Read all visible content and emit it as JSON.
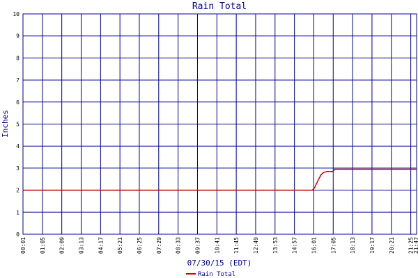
{
  "chart_data": {
    "type": "line",
    "title": "Rain Total",
    "ylabel": "Inches",
    "xlabel": "07/30/15 (EDT)",
    "ylim": [
      0,
      10
    ],
    "y_ticks": [
      0,
      1,
      2,
      3,
      4,
      5,
      6,
      7,
      8,
      9,
      10
    ],
    "x_ticks": [
      "00:01",
      "01:05",
      "02:09",
      "03:13",
      "04:17",
      "05:21",
      "06:25",
      "07:29",
      "08:33",
      "09:37",
      "10:41",
      "11:45",
      "12:49",
      "13:53",
      "14:57",
      "16:01",
      "17:05",
      "18:13",
      "19:17",
      "20:21",
      "21:25",
      "21:47"
    ],
    "grid": true,
    "legend_position": "bottom-left",
    "series": [
      {
        "name": "Rain Total",
        "color": "#cc0000",
        "points": [
          [
            "00:01",
            2.0
          ],
          [
            "16:01",
            2.0
          ],
          [
            "16:08",
            2.1
          ],
          [
            "16:15",
            2.3
          ],
          [
            "16:22",
            2.5
          ],
          [
            "16:30",
            2.7
          ],
          [
            "16:38",
            2.8
          ],
          [
            "16:50",
            2.85
          ],
          [
            "17:10",
            2.85
          ],
          [
            "17:15",
            2.95
          ],
          [
            "21:47",
            2.95
          ]
        ]
      }
    ]
  }
}
